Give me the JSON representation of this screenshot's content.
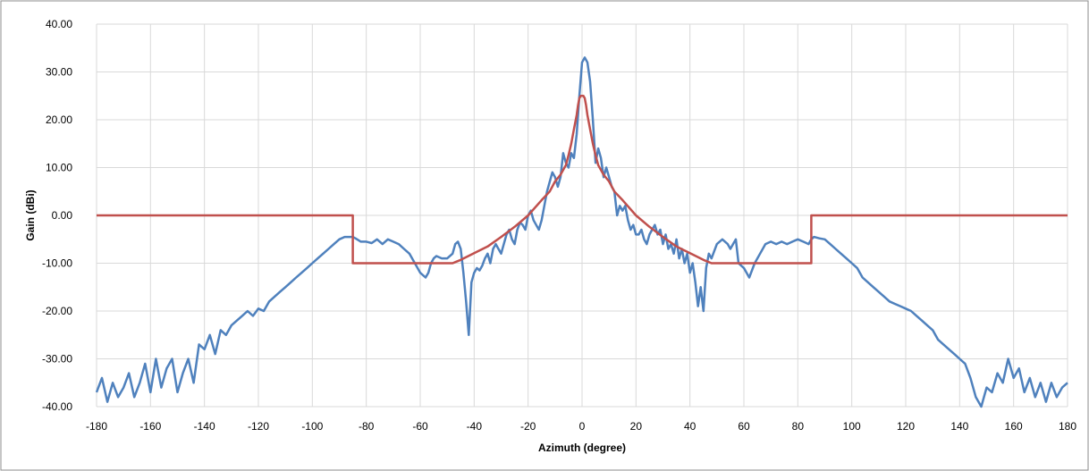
{
  "chart_data": {
    "type": "line",
    "title": "",
    "xlabel": "Azimuth (degree)",
    "ylabel": "Gain (dBi)",
    "xlim": [
      -180,
      180
    ],
    "ylim": [
      -40,
      40
    ],
    "grid": true,
    "legend": "none",
    "x_ticks": [
      -180,
      -160,
      -140,
      -120,
      -100,
      -80,
      -60,
      -40,
      -20,
      0,
      20,
      40,
      60,
      80,
      100,
      120,
      140,
      160,
      180
    ],
    "x_tick_labels": [
      "-180",
      "-160",
      "-140",
      "-120",
      "-100",
      "-80",
      "-60",
      "-40",
      "-20",
      "0",
      "20",
      "40",
      "60",
      "80",
      "100",
      "120",
      "140",
      "160",
      "180"
    ],
    "y_ticks": [
      40,
      30,
      20,
      10,
      0,
      -10,
      -20,
      -30,
      -40
    ],
    "y_tick_labels": [
      "40.00",
      "30.00",
      "20.00",
      "10.00",
      "0.00",
      "-10.00",
      "-20.00",
      "-30.00",
      "-40.00"
    ],
    "series": [
      {
        "color": "#4f81bd",
        "x": [
          -180,
          -178,
          -176,
          -174,
          -172,
          -170,
          -168,
          -166,
          -164,
          -162,
          -160,
          -158,
          -156,
          -154,
          -152,
          -150,
          -148,
          -146,
          -144,
          -142,
          -140,
          -138,
          -136,
          -134,
          -132,
          -130,
          -128,
          -126,
          -124,
          -122,
          -120,
          -118,
          -116,
          -114,
          -112,
          -110,
          -108,
          -106,
          -104,
          -102,
          -100,
          -98,
          -96,
          -94,
          -92,
          -90,
          -88,
          -86,
          -85,
          -84,
          -82,
          -80,
          -78,
          -76,
          -74,
          -72,
          -70,
          -68,
          -66,
          -64,
          -62,
          -60,
          -58,
          -57,
          -56,
          -55,
          -54,
          -52,
          -50,
          -48,
          -47,
          -46,
          -45,
          -44,
          -43,
          -42,
          -41,
          -40,
          -39,
          -38,
          -37,
          -36,
          -35,
          -34,
          -33,
          -32,
          -31,
          -30,
          -29,
          -28,
          -27,
          -26,
          -25,
          -24,
          -23,
          -22,
          -21,
          -20,
          -19,
          -18,
          -17,
          -16,
          -15,
          -14,
          -13,
          -12,
          -11,
          -10,
          -9,
          -8,
          -7,
          -6,
          -5,
          -4,
          -3,
          -2,
          -1,
          0,
          1,
          2,
          3,
          4,
          5,
          6,
          7,
          8,
          9,
          10,
          11,
          12,
          13,
          14,
          15,
          16,
          17,
          18,
          19,
          20,
          21,
          22,
          23,
          24,
          25,
          26,
          27,
          28,
          29,
          30,
          31,
          32,
          33,
          34,
          35,
          36,
          37,
          38,
          39,
          40,
          41,
          42,
          43,
          44,
          45,
          46,
          47,
          48,
          50,
          52,
          54,
          55,
          56,
          57,
          58,
          60,
          62,
          64,
          66,
          68,
          70,
          72,
          74,
          76,
          78,
          80,
          82,
          84,
          85,
          86,
          88,
          90,
          92,
          94,
          96,
          98,
          100,
          102,
          104,
          106,
          108,
          110,
          112,
          114,
          116,
          118,
          120,
          122,
          124,
          126,
          128,
          130,
          132,
          134,
          136,
          138,
          140,
          142,
          144,
          146,
          148,
          150,
          152,
          154,
          156,
          158,
          160,
          162,
          164,
          166,
          168,
          170,
          172,
          174,
          176,
          178,
          180
        ],
        "y": [
          -37,
          -34,
          -39,
          -35,
          -38,
          -36,
          -33,
          -38,
          -35,
          -31,
          -37,
          -30,
          -36,
          -32,
          -30,
          -37,
          -33,
          -30,
          -35,
          -27,
          -28,
          -25,
          -29,
          -24,
          -25,
          -23,
          -22,
          -21,
          -20,
          -21,
          -19.5,
          -20,
          -18,
          -17,
          -16,
          -15,
          -14,
          -13,
          -12,
          -11,
          -10,
          -9,
          -8,
          -7,
          -6,
          -5,
          -4.5,
          -4.5,
          -4.5,
          -4.8,
          -5.5,
          -5.5,
          -5.8,
          -5,
          -6,
          -5,
          -5.5,
          -6,
          -7,
          -8,
          -10,
          -12,
          -13,
          -12,
          -10,
          -9,
          -8.5,
          -9,
          -9,
          -8,
          -6,
          -5.5,
          -7,
          -12,
          -18,
          -25,
          -14,
          -12,
          -11,
          -11.5,
          -10.5,
          -9,
          -8,
          -10,
          -7,
          -6,
          -7,
          -8,
          -6,
          -4,
          -3,
          -5,
          -6,
          -3,
          -1.5,
          -2,
          -3,
          0,
          1,
          -1,
          -2,
          -3,
          -1,
          2,
          5,
          7,
          9,
          8,
          6,
          8,
          13,
          11,
          10,
          13,
          12,
          17,
          25,
          32,
          33,
          32,
          28,
          20,
          11,
          14,
          12,
          8,
          10,
          8,
          6,
          5,
          0,
          2,
          1,
          2,
          -1,
          -3,
          -2,
          -4,
          -4,
          -3,
          -5,
          -6,
          -4,
          -3,
          -2,
          -4,
          -3,
          -6,
          -4,
          -7,
          -6,
          -8,
          -5,
          -9,
          -7,
          -10,
          -8,
          -12,
          -10,
          -14,
          -19,
          -15,
          -20,
          -11,
          -8,
          -9,
          -6,
          -5,
          -6,
          -7,
          -6,
          -5,
          -10,
          -11,
          -13,
          -10,
          -8,
          -6,
          -5.5,
          -6,
          -5.5,
          -6,
          -5.5,
          -5,
          -5.5,
          -6,
          -5,
          -4.5,
          -4.8,
          -5,
          -6,
          -7,
          -8,
          -9,
          -10,
          -11,
          -13,
          -14,
          -15,
          -16,
          -17,
          -18,
          -18.5,
          -19,
          -19.5,
          -20,
          -21,
          -22,
          -23,
          -24,
          -26,
          -27,
          -28,
          -29,
          -30,
          -31,
          -34,
          -38,
          -40,
          -36,
          -37,
          -33,
          -35,
          -30,
          -34,
          -32,
          -37,
          -34,
          -38,
          -35,
          -39,
          -35,
          -38,
          -36,
          -35
        ]
      },
      {
        "color": "#c0504d",
        "x": [
          -180,
          -85,
          -85,
          -48,
          -45,
          -40,
          -35,
          -30,
          -25,
          -20,
          -15,
          -12,
          -10,
          -8,
          -6,
          -5,
          -4,
          -3,
          -2,
          -1.5,
          -1,
          -0.5,
          0,
          0.5,
          1,
          1.5,
          2,
          3,
          4,
          5,
          6,
          8,
          10,
          12,
          15,
          20,
          25,
          30,
          35,
          40,
          45,
          48,
          85,
          85,
          180
        ],
        "y": [
          0,
          0,
          -10,
          -10,
          -9.3,
          -7.9,
          -6.5,
          -4.5,
          -2.4,
          0,
          3.2,
          5,
          7.1,
          8.5,
          10.5,
          12.6,
          15,
          18,
          21,
          23,
          24.5,
          25,
          25,
          25,
          24.5,
          23,
          21,
          18,
          15,
          12.6,
          10.5,
          8.5,
          7.1,
          5,
          3.2,
          0,
          -2.4,
          -4.5,
          -6.5,
          -7.9,
          -9.3,
          -10,
          -10,
          0,
          0
        ]
      }
    ]
  }
}
